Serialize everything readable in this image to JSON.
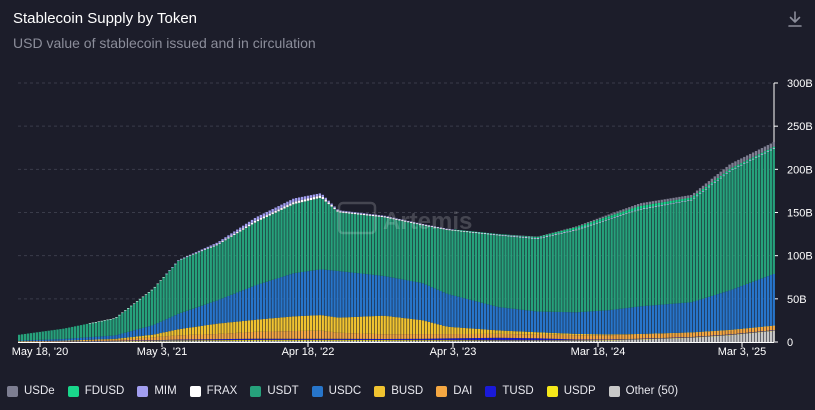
{
  "header": {
    "title": "Stablecoin Supply by Token",
    "subtitle": "USD value of stablecoin issued and in circulation",
    "download_icon": "download-icon"
  },
  "watermark": "Artemis",
  "colors": {
    "background": "#1c1d2a",
    "grid": "#3a3c4a",
    "axis_text": "#ffffff"
  },
  "legend": [
    {
      "key": "usde",
      "label": "USDe",
      "color": "#7d7e91"
    },
    {
      "key": "fdusd",
      "label": "FDUSD",
      "color": "#19d68b"
    },
    {
      "key": "mim",
      "label": "MIM",
      "color": "#a29ef0"
    },
    {
      "key": "frax",
      "label": "FRAX",
      "color": "#ffffff"
    },
    {
      "key": "usdt",
      "label": "USDT",
      "color": "#26a17b"
    },
    {
      "key": "usdc",
      "label": "USDC",
      "color": "#2775ca"
    },
    {
      "key": "busd",
      "label": "BUSD",
      "color": "#f0c330"
    },
    {
      "key": "dai",
      "label": "DAI",
      "color": "#f4a742"
    },
    {
      "key": "tusd",
      "label": "TUSD",
      "color": "#1a1ad8"
    },
    {
      "key": "usdp",
      "label": "USDP",
      "color": "#f5e81a"
    },
    {
      "key": "other",
      "label": "Other (50)",
      "color": "#c8c8c8"
    }
  ],
  "chart_data": {
    "type": "area",
    "subtype": "stacked-bar",
    "x_ticks": [
      "May 18, '20",
      "May 3, '21",
      "Apr 18, '22",
      "Apr 3, '23",
      "Mar 18, '24",
      "Mar 3, '25"
    ],
    "y_ticks": [
      "300B",
      "250B",
      "200B",
      "150B",
      "100B",
      "50B",
      "0"
    ],
    "ylim": [
      0,
      300
    ],
    "y_unit": "B USD",
    "x_range": [
      "2020-05-18",
      "2025-04-15"
    ],
    "grid": true,
    "y_axis_position": "right",
    "legend_position": "bottom",
    "series_order": [
      "other",
      "usdp",
      "tusd",
      "dai",
      "busd",
      "usdc",
      "usdt",
      "frax",
      "mim",
      "fdusd",
      "usde"
    ],
    "keyframes": [
      {
        "date": "2020-05-18",
        "other": 0.2,
        "usdp": 0.1,
        "tusd": 0.2,
        "dai": 0.1,
        "busd": 0.2,
        "usdc": 0.8,
        "usdt": 6.8,
        "frax": 0,
        "mim": 0,
        "fdusd": 0,
        "usde": 0
      },
      {
        "date": "2020-09-01",
        "other": 0.3,
        "usdp": 0.2,
        "tusd": 0.3,
        "dai": 0.5,
        "busd": 0.2,
        "usdc": 2.0,
        "usdt": 12.0,
        "frax": 0,
        "mim": 0,
        "fdusd": 0,
        "usde": 0
      },
      {
        "date": "2021-01-01",
        "other": 0.5,
        "usdp": 0.5,
        "tusd": 0.4,
        "dai": 1.2,
        "busd": 1.0,
        "usdc": 4.0,
        "usdt": 20.0,
        "frax": 0.1,
        "mim": 0,
        "fdusd": 0,
        "usde": 0
      },
      {
        "date": "2021-04-01",
        "other": 1.0,
        "usdp": 0.6,
        "tusd": 0.4,
        "dai": 3.5,
        "busd": 3.0,
        "usdc": 11.0,
        "usdt": 42.0,
        "frax": 0.1,
        "mim": 0,
        "fdusd": 0,
        "usde": 0
      },
      {
        "date": "2021-06-01",
        "other": 1.0,
        "usdp": 0.8,
        "tusd": 1.0,
        "dai": 5.0,
        "busd": 7.0,
        "usdc": 18.0,
        "usdt": 62.0,
        "frax": 0.2,
        "mim": 0.1,
        "fdusd": 0,
        "usde": 0
      },
      {
        "date": "2021-09-01",
        "other": 1.2,
        "usdp": 0.9,
        "tusd": 1.2,
        "dai": 6.0,
        "busd": 12.0,
        "usdc": 27.0,
        "usdt": 64.0,
        "frax": 1.0,
        "mim": 2.0,
        "fdusd": 0,
        "usde": 0
      },
      {
        "date": "2021-12-01",
        "other": 1.5,
        "usdp": 1.0,
        "tusd": 1.3,
        "dai": 8.0,
        "busd": 14.0,
        "usdc": 40.0,
        "usdt": 73.0,
        "frax": 2.0,
        "mim": 3.5,
        "fdusd": 0,
        "usde": 0
      },
      {
        "date": "2022-03-01",
        "other": 1.5,
        "usdp": 1.0,
        "tusd": 1.2,
        "dai": 9.0,
        "busd": 17.0,
        "usdc": 50.0,
        "usdt": 80.0,
        "frax": 2.5,
        "mim": 4.0,
        "fdusd": 0,
        "usde": 0
      },
      {
        "date": "2022-05-05",
        "other": 1.5,
        "usdp": 1.0,
        "tusd": 1.2,
        "dai": 9.5,
        "busd": 18.0,
        "usdc": 53.0,
        "usdt": 83.0,
        "frax": 2.7,
        "mim": 2.5,
        "fdusd": 0,
        "usde": 0
      },
      {
        "date": "2022-06-15",
        "other": 1.5,
        "usdp": 1.0,
        "tusd": 1.2,
        "dai": 7.0,
        "busd": 17.5,
        "usdc": 54.0,
        "usdt": 68.0,
        "frax": 1.4,
        "mim": 1.0,
        "fdusd": 0,
        "usde": 0
      },
      {
        "date": "2022-10-01",
        "other": 1.4,
        "usdp": 0.9,
        "tusd": 1.2,
        "dai": 5.5,
        "busd": 21.5,
        "usdc": 46.0,
        "usdt": 68.0,
        "frax": 1.2,
        "mim": 0.7,
        "fdusd": 0,
        "usde": 0
      },
      {
        "date": "2023-01-01",
        "other": 1.4,
        "usdp": 0.8,
        "tusd": 1.5,
        "dai": 5.5,
        "busd": 16.0,
        "usdc": 43.0,
        "usdt": 67.0,
        "frax": 1.0,
        "mim": 0.5,
        "fdusd": 0,
        "usde": 0
      },
      {
        "date": "2023-03-01",
        "other": 1.4,
        "usdp": 0.8,
        "tusd": 2.0,
        "dai": 5.0,
        "busd": 8.5,
        "usdc": 38.0,
        "usdt": 74.0,
        "frax": 1.0,
        "mim": 0.4,
        "fdusd": 0,
        "usde": 0
      },
      {
        "date": "2023-07-01",
        "other": 1.3,
        "usdp": 0.6,
        "tusd": 3.0,
        "dai": 4.5,
        "busd": 4.0,
        "usdc": 27.0,
        "usdt": 83.0,
        "frax": 0.8,
        "mim": 0.3,
        "fdusd": 0.5,
        "usde": 0
      },
      {
        "date": "2023-10-01",
        "other": 1.3,
        "usdp": 0.5,
        "tusd": 2.5,
        "dai": 4.5,
        "busd": 2.5,
        "usdc": 24.0,
        "usdt": 84.0,
        "frax": 0.7,
        "mim": 0.3,
        "fdusd": 1.5,
        "usde": 0.2
      },
      {
        "date": "2024-01-01",
        "other": 1.5,
        "usdp": 0.4,
        "tusd": 1.0,
        "dai": 5.0,
        "busd": 1.5,
        "usdc": 25.0,
        "usdt": 95.0,
        "frax": 0.7,
        "mim": 0.3,
        "fdusd": 2.5,
        "usde": 1.0
      },
      {
        "date": "2024-03-18",
        "other": 2.0,
        "usdp": 0.3,
        "tusd": 0.5,
        "dai": 5.0,
        "busd": 1.0,
        "usdc": 28.0,
        "usdt": 105.0,
        "frax": 0.6,
        "mim": 0.3,
        "fdusd": 3.0,
        "usde": 2.0
      },
      {
        "date": "2024-06-01",
        "other": 3.0,
        "usdp": 0.3,
        "tusd": 0.5,
        "dai": 5.0,
        "busd": 0.5,
        "usdc": 32.0,
        "usdt": 112.0,
        "frax": 0.6,
        "mim": 0.3,
        "fdusd": 3.5,
        "usde": 3.0
      },
      {
        "date": "2024-10-01",
        "other": 5.0,
        "usdp": 0.3,
        "tusd": 0.5,
        "dai": 5.0,
        "busd": 0.3,
        "usdc": 35.0,
        "usdt": 118.0,
        "frax": 0.6,
        "mim": 0.2,
        "fdusd": 2.5,
        "usde": 3.0
      },
      {
        "date": "2025-01-01",
        "other": 8.0,
        "usdp": 0.3,
        "tusd": 0.5,
        "dai": 5.0,
        "busd": 0.2,
        "usdc": 46.0,
        "usdt": 138.0,
        "frax": 0.6,
        "mim": 0.2,
        "fdusd": 2.0,
        "usde": 5.5
      },
      {
        "date": "2025-04-15",
        "other": 13.0,
        "usdp": 0.3,
        "tusd": 0.5,
        "dai": 5.0,
        "busd": 0.2,
        "usdc": 60.0,
        "usdt": 145.0,
        "frax": 0.6,
        "mim": 0.2,
        "fdusd": 1.5,
        "usde": 5.5
      }
    ]
  }
}
